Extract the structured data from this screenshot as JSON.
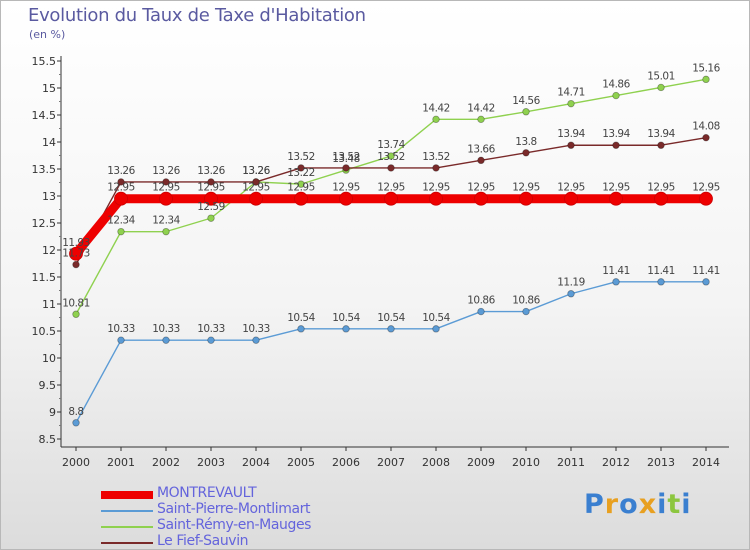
{
  "title": "Evolution du Taux de Taxe d'Habitation",
  "unit_label": "(en %)",
  "logo": {
    "text": "Proxiti",
    "letter_colors": [
      "#3a7fd0",
      "#e8a020",
      "#3a7fd0",
      "#e8a020",
      "#3a7fd0",
      "#8cc63f",
      "#3a7fd0"
    ]
  },
  "chart_data": {
    "type": "line",
    "title": "Evolution du Taux de Taxe d'Habitation",
    "ylabel": "(en %)",
    "xlabel": "",
    "x": [
      "2000",
      "2001",
      "2002",
      "2003",
      "2004",
      "2005",
      "2006",
      "2007",
      "2008",
      "2009",
      "2010",
      "2011",
      "2012",
      "2013",
      "2014"
    ],
    "ylim": [
      8.5,
      15.5
    ],
    "yticks": [
      "8.5",
      "9",
      "9.5",
      "10",
      "10.5",
      "11",
      "11.5",
      "12",
      "12.5",
      "13",
      "13.5",
      "14",
      "14.5",
      "15",
      "15.5"
    ],
    "grid": false,
    "legend_position": "bottom-left",
    "series": [
      {
        "name": "MONTREVAULT",
        "color": "#ee0000",
        "values": [
          11.93,
          12.95,
          12.95,
          12.95,
          12.95,
          12.95,
          12.95,
          12.95,
          12.95,
          12.95,
          12.95,
          12.95,
          12.95,
          12.95,
          12.95
        ],
        "labels": [
          "11.93",
          "12.95",
          "12.95",
          "12.95",
          "12.95",
          "12.95",
          "12.95",
          "12.95",
          "12.95",
          "12.95",
          "12.95",
          "12.95",
          "12.95",
          "12.95",
          "12.95"
        ]
      },
      {
        "name": "Saint-Pierre-Montlimart",
        "color": "#5b9bd5",
        "values": [
          8.8,
          10.33,
          10.33,
          10.33,
          10.33,
          10.54,
          10.54,
          10.54,
          10.54,
          10.86,
          10.86,
          11.19,
          11.41,
          11.41,
          11.41
        ],
        "labels": [
          "8.8",
          "10.33",
          "10.33",
          "10.33",
          "10.33",
          "10.54",
          "10.54",
          "10.54",
          "10.54",
          "10.86",
          "10.86",
          "11.19",
          "11.41",
          "11.41",
          "11.41"
        ]
      },
      {
        "name": "Saint-Rémy-en-Mauges",
        "color": "#8fd14f",
        "values": [
          10.81,
          12.34,
          12.34,
          12.59,
          13.26,
          13.22,
          13.48,
          13.74,
          14.42,
          14.42,
          14.56,
          14.71,
          14.86,
          15.01,
          15.16
        ],
        "labels": [
          "10.81",
          "12.34",
          "12.34",
          "12.59",
          "13.26",
          "13.22",
          "13.48",
          "13.74",
          "14.42",
          "14.42",
          "14.56",
          "14.71",
          "14.86",
          "15.01",
          "15.16"
        ]
      },
      {
        "name": "Le Fief-Sauvin",
        "color": "#7a2a2a",
        "values": [
          11.73,
          13.26,
          13.26,
          13.26,
          13.26,
          13.52,
          13.52,
          13.52,
          13.52,
          13.66,
          13.8,
          13.94,
          13.94,
          13.94,
          14.08
        ],
        "labels": [
          "11.73",
          "13.26",
          "13.26",
          "13.26",
          "13.26",
          "13.52",
          "13.52",
          "13.52",
          "13.52",
          "13.66",
          "13.8",
          "13.94",
          "13.94",
          "13.94",
          "14.08"
        ]
      }
    ]
  }
}
